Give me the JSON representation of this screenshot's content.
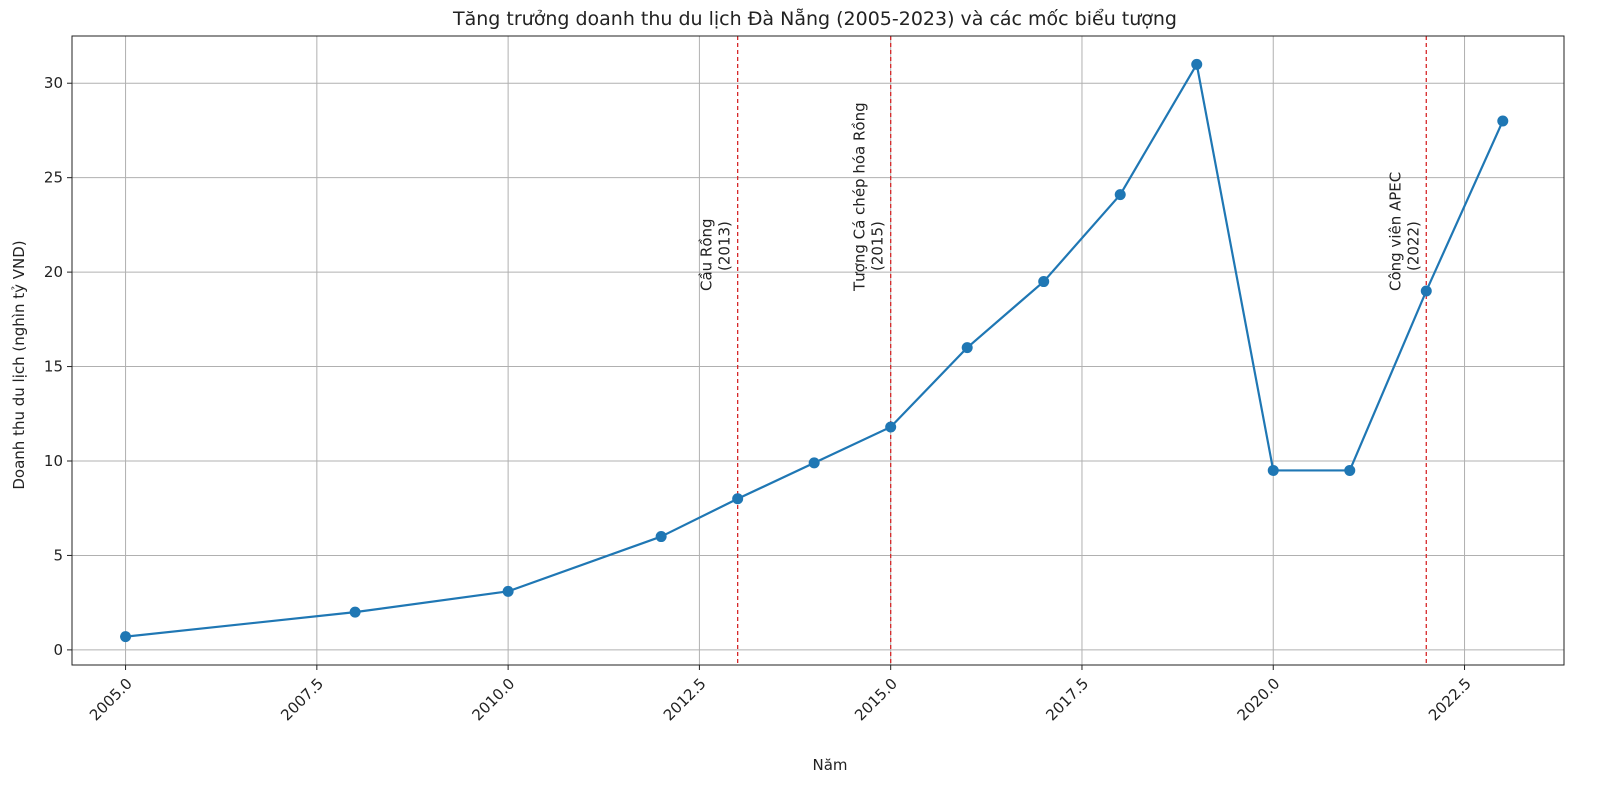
{
  "chart_data": {
    "type": "line",
    "title": "Tăng trưởng doanh thu du lịch Đà Nẵng (2005-2023) và các mốc biểu tượng",
    "xlabel": "Năm",
    "ylabel": "Doanh thu du lịch (nghìn tỷ VND)",
    "xlim": [
      2004.3,
      2023.8
    ],
    "ylim": [
      -0.8,
      32.5
    ],
    "grid": true,
    "x_ticks": [
      2005.0,
      2007.5,
      2010.0,
      2012.5,
      2015.0,
      2017.5,
      2020.0,
      2022.5
    ],
    "x_tick_labels": [
      "2005.0",
      "2007.5",
      "2010.0",
      "2012.5",
      "2015.0",
      "2017.5",
      "2020.0",
      "2022.5"
    ],
    "y_ticks": [
      0,
      5,
      10,
      15,
      20,
      25,
      30
    ],
    "y_tick_labels": [
      "0",
      "5",
      "10",
      "15",
      "20",
      "25",
      "30"
    ],
    "series": [
      {
        "color": "#1f77b4",
        "x": [
          2005,
          2008,
          2010,
          2012,
          2013,
          2014,
          2015,
          2016,
          2017,
          2018,
          2019,
          2020,
          2021,
          2022,
          2023
        ],
        "y": [
          0.7,
          2.0,
          3.1,
          6.0,
          8.0,
          9.9,
          11.8,
          16.0,
          19.5,
          24.1,
          31.0,
          9.5,
          9.5,
          19.0,
          28.0
        ]
      }
    ],
    "annotations": [
      {
        "x": 2013,
        "line1": "Cầu Rồng",
        "line2": "(2013)",
        "color": "#d62728"
      },
      {
        "x": 2015,
        "line1": "Tượng Cá chép hóa Rồng",
        "line2": "(2015)",
        "color": "#d62728"
      },
      {
        "x": 2022,
        "line1": "Công viên APEC",
        "line2": "(2022)",
        "color": "#d62728"
      }
    ]
  }
}
